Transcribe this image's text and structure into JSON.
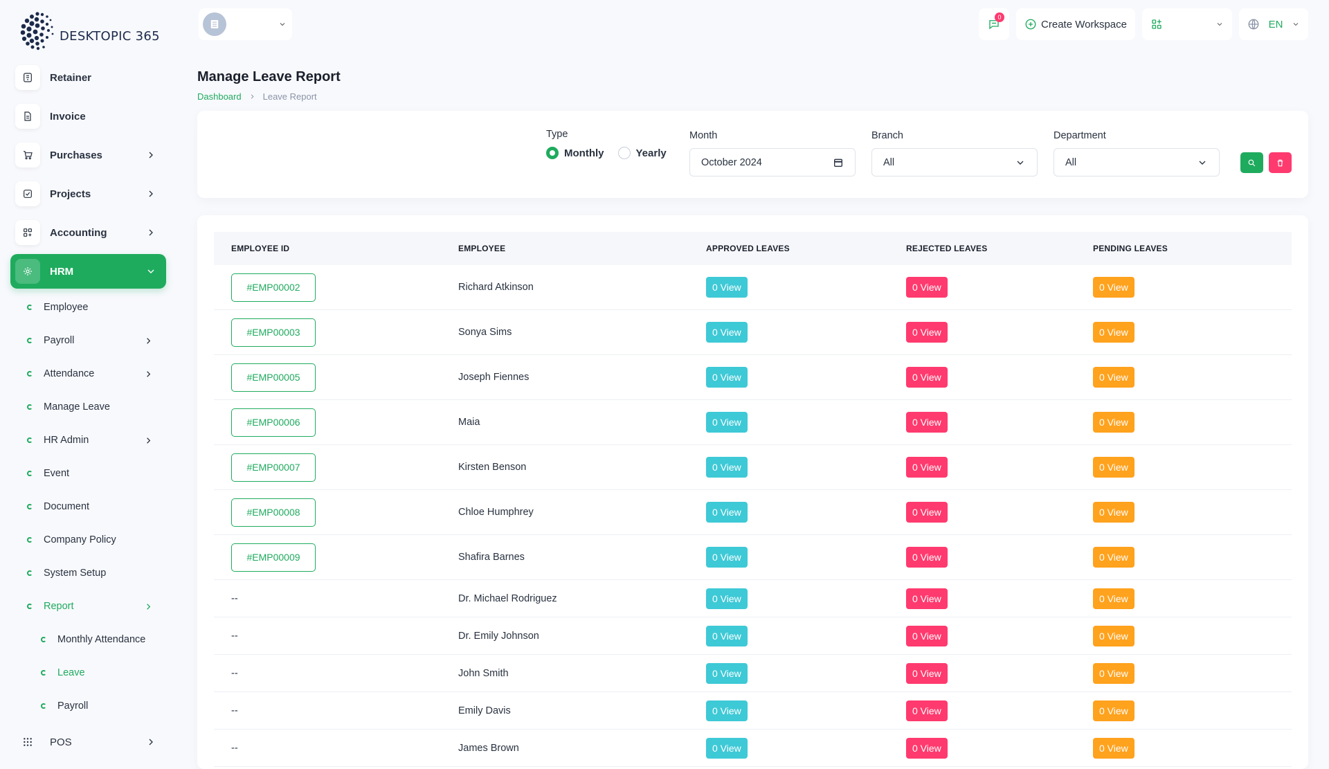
{
  "brand": {
    "name": "DESKTOPIC 365"
  },
  "sidebar": {
    "items": [
      {
        "label": "Retainer",
        "icon": "file-icon",
        "chevron": false
      },
      {
        "label": "Invoice",
        "icon": "document-icon",
        "chevron": false
      },
      {
        "label": "Purchases",
        "icon": "cart-icon",
        "chevron": true
      },
      {
        "label": "Projects",
        "icon": "checkbox-icon",
        "chevron": true
      },
      {
        "label": "Accounting",
        "icon": "grid-icon",
        "chevron": true
      }
    ],
    "hrm": {
      "label": "HRM",
      "subitems": [
        {
          "label": "Employee",
          "chevron": false
        },
        {
          "label": "Payroll",
          "chevron": true
        },
        {
          "label": "Attendance",
          "chevron": true
        },
        {
          "label": "Manage Leave",
          "chevron": false
        },
        {
          "label": "HR Admin",
          "chevron": true
        },
        {
          "label": "Event",
          "chevron": false
        },
        {
          "label": "Document",
          "chevron": false
        },
        {
          "label": "Company Policy",
          "chevron": false
        },
        {
          "label": "System Setup",
          "chevron": false
        }
      ],
      "report": {
        "label": "Report",
        "subitems": [
          {
            "label": "Monthly Attendance"
          },
          {
            "label": "Leave"
          },
          {
            "label": "Payroll"
          }
        ]
      }
    },
    "pos": {
      "label": "POS"
    }
  },
  "header": {
    "chat_badge": "0",
    "create_workspace": "Create Workspace",
    "language": "EN"
  },
  "page": {
    "title": "Manage Leave Report",
    "breadcrumb_home": "Dashboard",
    "breadcrumb_current": "Leave Report"
  },
  "filters": {
    "type_label": "Type",
    "type_monthly": "Monthly",
    "type_yearly": "Yearly",
    "month_label": "Month",
    "month_value": "October 2024",
    "branch_label": "Branch",
    "branch_value": "All",
    "department_label": "Department",
    "department_value": "All"
  },
  "table": {
    "headers": {
      "employee_id": "EMPLOYEE ID",
      "employee": "EMPLOYEE",
      "approved": "APPROVED LEAVES",
      "rejected": "REJECTED LEAVES",
      "pending": "PENDING LEAVES"
    },
    "rows": [
      {
        "id": "#EMP00002",
        "name": "Richard Atkinson",
        "approved": "0 View",
        "rejected": "0 View",
        "pending": "0 View"
      },
      {
        "id": "#EMP00003",
        "name": "Sonya Sims",
        "approved": "0 View",
        "rejected": "0 View",
        "pending": "0 View"
      },
      {
        "id": "#EMP00005",
        "name": "Joseph Fiennes",
        "approved": "0 View",
        "rejected": "0 View",
        "pending": "0 View"
      },
      {
        "id": "#EMP00006",
        "name": "Maia",
        "approved": "0 View",
        "rejected": "0 View",
        "pending": "0 View"
      },
      {
        "id": "#EMP00007",
        "name": "Kirsten Benson",
        "approved": "0 View",
        "rejected": "0 View",
        "pending": "0 View"
      },
      {
        "id": "#EMP00008",
        "name": "Chloe Humphrey",
        "approved": "0 View",
        "rejected": "0 View",
        "pending": "0 View"
      },
      {
        "id": "#EMP00009",
        "name": "Shafira Barnes",
        "approved": "0 View",
        "rejected": "0 View",
        "pending": "0 View"
      },
      {
        "id": "--",
        "name": "Dr. Michael Rodriguez",
        "approved": "0 View",
        "rejected": "0 View",
        "pending": "0 View"
      },
      {
        "id": "--",
        "name": "Dr. Emily Johnson",
        "approved": "0 View",
        "rejected": "0 View",
        "pending": "0 View"
      },
      {
        "id": "--",
        "name": "John Smith",
        "approved": "0 View",
        "rejected": "0 View",
        "pending": "0 View"
      },
      {
        "id": "--",
        "name": "Emily Davis",
        "approved": "0 View",
        "rejected": "0 View",
        "pending": "0 View"
      },
      {
        "id": "--",
        "name": "James Brown",
        "approved": "0 View",
        "rejected": "0 View",
        "pending": "0 View"
      }
    ]
  },
  "colors": {
    "accent": "#1fab5e",
    "info": "#3ec9d6",
    "danger": "#ff3a6e",
    "warning": "#ffa21d"
  }
}
